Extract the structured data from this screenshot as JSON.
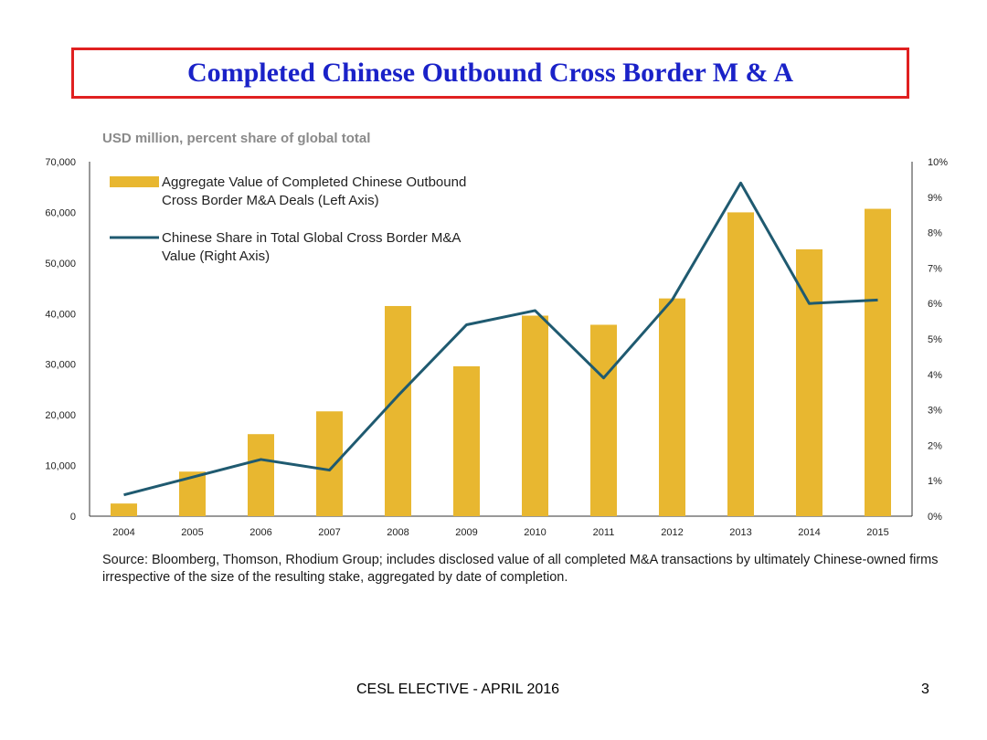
{
  "slide": {
    "title": "Completed Chinese Outbound Cross Border M & A",
    "subtitle": "USD million, percent share of global total",
    "source": "Source: Bloomberg, Thomson, Rhodium Group; includes disclosed value of all completed M&A transactions by ultimately Chinese-owned firms irrespective of the size of the resulting stake, aggregated by date of completion.",
    "footer": "CESL ELECTIVE -  APRIL 2016",
    "page_number": "3"
  },
  "colors": {
    "bar": "#e8b730",
    "line": "#1f5a70",
    "title_border": "#e02020",
    "title_text": "#1a22c8"
  },
  "chart_data": {
    "type": "bar",
    "categories": [
      "2004",
      "2005",
      "2006",
      "2007",
      "2008",
      "2009",
      "2010",
      "2011",
      "2012",
      "2013",
      "2014",
      "2015"
    ],
    "series": [
      {
        "name": "Aggregate Value of Completed Chinese Outbound Cross Border M&A Deals (Left Axis)",
        "type": "bar",
        "axis": "left",
        "values": [
          2500,
          8800,
          16200,
          20700,
          41500,
          29600,
          39600,
          37800,
          43000,
          60000,
          52700,
          60700
        ]
      },
      {
        "name": "Chinese Share in Total Global Cross Border M&A Value (Right Axis)",
        "type": "line",
        "axis": "right",
        "values": [
          0.6,
          1.1,
          1.6,
          1.3,
          3.4,
          5.4,
          5.8,
          3.9,
          6.1,
          9.4,
          6.0,
          6.1
        ]
      }
    ],
    "legend": [
      [
        "Aggregate Value of Completed Chinese Outbound",
        "Cross Border M&A Deals (Left Axis)"
      ],
      [
        "Chinese Share in Total Global Cross Border M&A",
        "Value (Right Axis)"
      ]
    ],
    "left_axis": {
      "ylim": [
        0,
        70000
      ],
      "ticks": [
        "0",
        "10,000",
        "20,000",
        "30,000",
        "40,000",
        "50,000",
        "60,000",
        "70,000"
      ]
    },
    "right_axis": {
      "ylim": [
        0,
        10
      ],
      "ticks": [
        "0%",
        "1%",
        "2%",
        "3%",
        "4%",
        "5%",
        "6%",
        "7%",
        "8%",
        "9%",
        "10%"
      ]
    },
    "grid": false,
    "legend_position": "top-left"
  }
}
